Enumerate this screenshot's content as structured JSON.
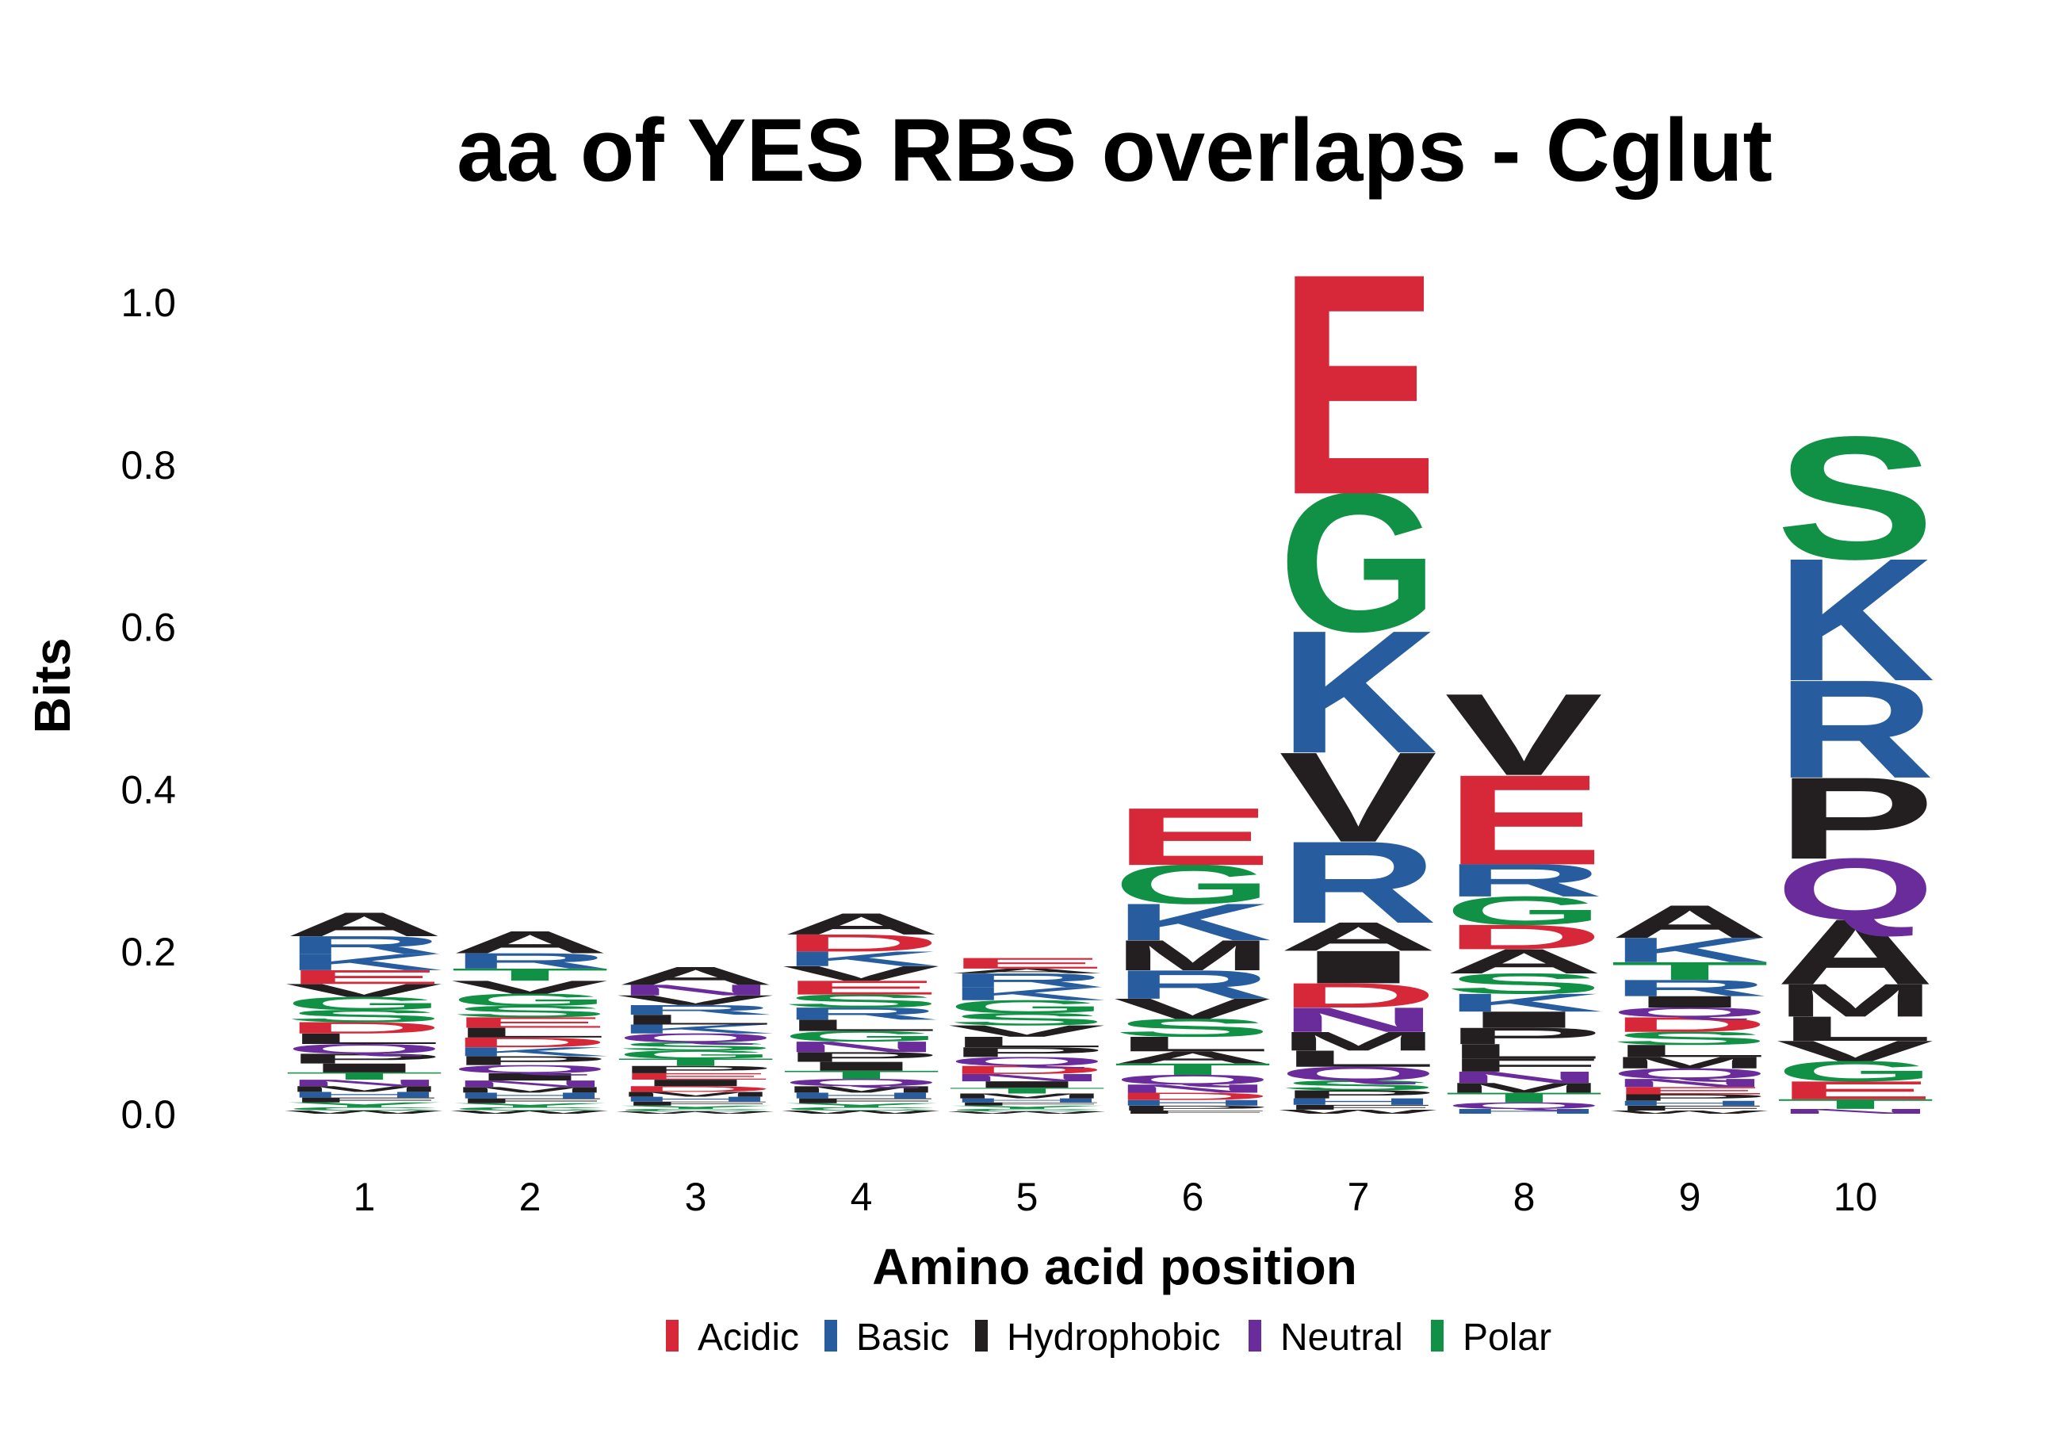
{
  "chart_data": {
    "type": "sequence-logo",
    "title": "aa of YES RBS overlaps - Cglut",
    "xlabel": "Amino acid position",
    "ylabel": "Bits",
    "ylim": [
      0,
      1.05
    ],
    "yticks": [
      "0.0",
      "0.2",
      "0.4",
      "0.6",
      "0.8",
      "1.0"
    ],
    "ytick_values": [
      0,
      0.2,
      0.4,
      0.6,
      0.8,
      1.0
    ],
    "positions": [
      "1",
      "2",
      "3",
      "4",
      "5",
      "6",
      "7",
      "8",
      "9",
      "10"
    ],
    "legend": [
      {
        "name": "Acidic",
        "color": "#d62839"
      },
      {
        "name": "Basic",
        "color": "#275d9e"
      },
      {
        "name": "Hydrophobic",
        "color": "#231f20"
      },
      {
        "name": "Neutral",
        "color": "#6a2c9b"
      },
      {
        "name": "Polar",
        "color": "#109146"
      }
    ],
    "classes": {
      "A": "Hydrophobic",
      "V": "Hydrophobic",
      "L": "Hydrophobic",
      "I": "Hydrophobic",
      "M": "Hydrophobic",
      "F": "Hydrophobic",
      "W": "Hydrophobic",
      "P": "Hydrophobic",
      "E": "Acidic",
      "D": "Acidic",
      "K": "Basic",
      "R": "Basic",
      "H": "Basic",
      "Q": "Neutral",
      "N": "Neutral",
      "S": "Polar",
      "G": "Polar",
      "T": "Polar",
      "Y": "Polar",
      "C": "Polar"
    },
    "stacks": [
      [
        [
          "W",
          0.004
        ],
        [
          "C",
          0.004
        ],
        [
          "Y",
          0.006
        ],
        [
          "F",
          0.006
        ],
        [
          "H",
          0.007
        ],
        [
          "M",
          0.007
        ],
        [
          "N",
          0.008
        ],
        [
          "T",
          0.009
        ],
        [
          "I",
          0.011
        ],
        [
          "P",
          0.012
        ],
        [
          "Q",
          0.012
        ],
        [
          "L",
          0.013
        ],
        [
          "D",
          0.014
        ],
        [
          "S",
          0.015
        ],
        [
          "G",
          0.016
        ],
        [
          "V",
          0.016
        ],
        [
          "E",
          0.017
        ],
        [
          "K",
          0.02
        ],
        [
          "R",
          0.022
        ],
        [
          "A",
          0.029
        ]
      ],
      [
        [
          "W",
          0.004
        ],
        [
          "C",
          0.004
        ],
        [
          "Y",
          0.005
        ],
        [
          "F",
          0.006
        ],
        [
          "H",
          0.007
        ],
        [
          "M",
          0.007
        ],
        [
          "N",
          0.008
        ],
        [
          "I",
          0.009
        ],
        [
          "Q",
          0.01
        ],
        [
          "P",
          0.011
        ],
        [
          "K",
          0.011
        ],
        [
          "D",
          0.012
        ],
        [
          "L",
          0.012
        ],
        [
          "E",
          0.013
        ],
        [
          "S",
          0.014
        ],
        [
          "G",
          0.015
        ],
        [
          "V",
          0.016
        ],
        [
          "T",
          0.015
        ],
        [
          "R",
          0.019
        ],
        [
          "A",
          0.027
        ]
      ],
      [
        [
          "W",
          0.003
        ],
        [
          "C",
          0.003
        ],
        [
          "Y",
          0.004
        ],
        [
          "F",
          0.005
        ],
        [
          "H",
          0.006
        ],
        [
          "M",
          0.006
        ],
        [
          "D",
          0.007
        ],
        [
          "I",
          0.008
        ],
        [
          "E",
          0.008
        ],
        [
          "P",
          0.009
        ],
        [
          "T",
          0.009
        ],
        [
          "G",
          0.01
        ],
        [
          "S",
          0.01
        ],
        [
          "Q",
          0.011
        ],
        [
          "K",
          0.011
        ],
        [
          "L",
          0.012
        ],
        [
          "R",
          0.012
        ],
        [
          "V",
          0.012
        ],
        [
          "N",
          0.013
        ],
        [
          "A",
          0.022
        ]
      ],
      [
        [
          "W",
          0.004
        ],
        [
          "C",
          0.004
        ],
        [
          "Y",
          0.005
        ],
        [
          "F",
          0.006
        ],
        [
          "H",
          0.007
        ],
        [
          "M",
          0.008
        ],
        [
          "Q",
          0.009
        ],
        [
          "T",
          0.01
        ],
        [
          "I",
          0.011
        ],
        [
          "P",
          0.012
        ],
        [
          "N",
          0.013
        ],
        [
          "G",
          0.013
        ],
        [
          "L",
          0.014
        ],
        [
          "R",
          0.015
        ],
        [
          "S",
          0.016
        ],
        [
          "E",
          0.017
        ],
        [
          "V",
          0.018
        ],
        [
          "K",
          0.018
        ],
        [
          "D",
          0.021
        ],
        [
          "A",
          0.026
        ]
      ],
      [
        [
          "W",
          0.003
        ],
        [
          "C",
          0.003
        ],
        [
          "Y",
          0.004
        ],
        [
          "F",
          0.004
        ],
        [
          "H",
          0.005
        ],
        [
          "M",
          0.006
        ],
        [
          "T",
          0.007
        ],
        [
          "I",
          0.008
        ],
        [
          "N",
          0.009
        ],
        [
          "D",
          0.01
        ],
        [
          "Q",
          0.011
        ],
        [
          "P",
          0.012
        ],
        [
          "L",
          0.013
        ],
        [
          "V",
          0.014
        ],
        [
          "S",
          0.015
        ],
        [
          "G",
          0.016
        ],
        [
          "K",
          0.016
        ],
        [
          "R",
          0.017
        ],
        [
          "A",
          0.006
        ],
        [
          "E",
          0.013
        ]
      ],
      [
        [
          "F",
          0.004
        ],
        [
          "P",
          0.006
        ],
        [
          "H",
          0.007
        ],
        [
          "D",
          0.009
        ],
        [
          "N",
          0.01
        ],
        [
          "Q",
          0.012
        ],
        [
          "T",
          0.014
        ],
        [
          "A",
          0.015
        ],
        [
          "L",
          0.018
        ],
        [
          "S",
          0.022
        ],
        [
          "V",
          0.025
        ],
        [
          "R",
          0.035
        ],
        [
          "M",
          0.037
        ],
        [
          "K",
          0.045
        ],
        [
          "G",
          0.048
        ],
        [
          "E",
          0.07
        ]
      ],
      [
        [
          "W",
          0.005
        ],
        [
          "F",
          0.006
        ],
        [
          "H",
          0.008
        ],
        [
          "P",
          0.01
        ],
        [
          "S",
          0.012
        ],
        [
          "Q",
          0.017
        ],
        [
          "L",
          0.02
        ],
        [
          "M",
          0.023
        ],
        [
          "N",
          0.03
        ],
        [
          "D",
          0.03
        ],
        [
          "I",
          0.04
        ],
        [
          "A",
          0.035
        ],
        [
          "R",
          0.1
        ],
        [
          "V",
          0.11
        ],
        [
          "K",
          0.15
        ],
        [
          "G",
          0.17
        ],
        [
          "E",
          0.27
        ]
      ],
      [
        [
          "H",
          0.006
        ],
        [
          "Q",
          0.008
        ],
        [
          "T",
          0.012
        ],
        [
          "M",
          0.012
        ],
        [
          "N",
          0.014
        ],
        [
          "F",
          0.016
        ],
        [
          "L",
          0.018
        ],
        [
          "P",
          0.02
        ],
        [
          "I",
          0.02
        ],
        [
          "K",
          0.022
        ],
        [
          "S",
          0.025
        ],
        [
          "A",
          0.03
        ],
        [
          "D",
          0.03
        ],
        [
          "G",
          0.035
        ],
        [
          "R",
          0.04
        ],
        [
          "E",
          0.11
        ],
        [
          "V",
          0.1
        ]
      ],
      [
        [
          "W",
          0.004
        ],
        [
          "F",
          0.006
        ],
        [
          "H",
          0.006
        ],
        [
          "P",
          0.008
        ],
        [
          "E",
          0.009
        ],
        [
          "N",
          0.01
        ],
        [
          "Q",
          0.013
        ],
        [
          "M",
          0.014
        ],
        [
          "L",
          0.015
        ],
        [
          "S",
          0.016
        ],
        [
          "D",
          0.018
        ],
        [
          "Q",
          0.012
        ],
        [
          "I",
          0.014
        ],
        [
          "R",
          0.02
        ],
        [
          "T",
          0.022
        ],
        [
          "K",
          0.03
        ],
        [
          "A",
          0.04
        ]
      ],
      [
        [
          "N",
          0.006
        ],
        [
          "T",
          0.012
        ],
        [
          "E",
          0.022
        ],
        [
          "G",
          0.025
        ],
        [
          "V",
          0.025
        ],
        [
          "L",
          0.03
        ],
        [
          "M",
          0.04
        ],
        [
          "A",
          0.08
        ],
        [
          "Q",
          0.075
        ],
        [
          "P",
          0.1
        ],
        [
          "R",
          0.12
        ],
        [
          "K",
          0.15
        ],
        [
          "S",
          0.15
        ]
      ]
    ]
  }
}
